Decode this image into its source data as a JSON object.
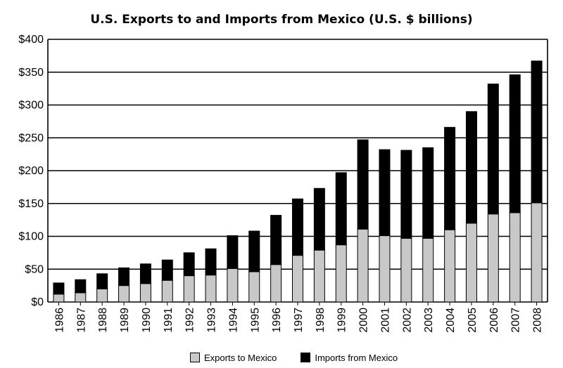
{
  "chart_data": {
    "type": "bar",
    "stacked": true,
    "title": "U.S. Exports to and Imports from Mexico (U.S. $ billions)",
    "categories": [
      "1986",
      "1987",
      "1988",
      "1989",
      "1990",
      "1991",
      "1992",
      "1993",
      "1994",
      "1995",
      "1996",
      "1997",
      "1998",
      "1999",
      "2000",
      "2001",
      "2002",
      "2003",
      "2004",
      "2005",
      "2006",
      "2007",
      "2008"
    ],
    "series": [
      {
        "name": "Exports to Mexico",
        "color": "#c8c8c8",
        "values": [
          12,
          14,
          20,
          25,
          28,
          33,
          40,
          41,
          51,
          46,
          57,
          71,
          79,
          87,
          111,
          101,
          97,
          97,
          110,
          120,
          134,
          136,
          151
        ]
      },
      {
        "name": "Imports from Mexico",
        "color": "#000000",
        "values": [
          17,
          20,
          23,
          27,
          30,
          31,
          35,
          40,
          50,
          62,
          75,
          86,
          94,
          110,
          136,
          131,
          134,
          138,
          156,
          170,
          198,
          210,
          216
        ]
      }
    ],
    "ylim": [
      0,
      400
    ],
    "yticks": [
      0,
      50,
      100,
      150,
      200,
      250,
      300,
      350,
      400
    ],
    "ytick_labels": [
      "$0",
      "$50",
      "$100",
      "$150",
      "$200",
      "$250",
      "$300",
      "$350",
      "$400"
    ],
    "grid": true,
    "legend_position": "bottom"
  }
}
